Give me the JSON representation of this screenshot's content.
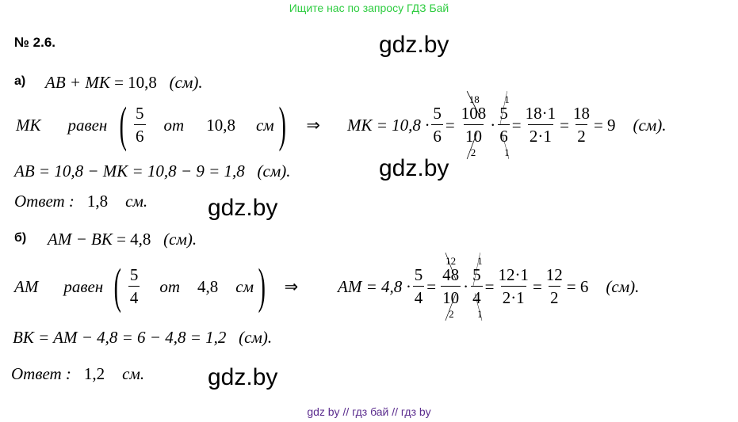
{
  "header_notice": "Ищите нас по запросу ГДЗ Бай",
  "problem_number": "№ 2.6.",
  "watermark": "gdz.by",
  "footer": "gdz by  //  гдз бай  //  гдз by",
  "part_a": {
    "label": "а)",
    "given": {
      "lhs": "AB + MK",
      "eq": " = 10,8",
      "unit": "   (см)."
    },
    "statement": {
      "var": "MK",
      "word": "равен",
      "num": "5",
      "den": "6",
      "of": "от",
      "value": "10,8",
      "unit": "см",
      "implies": "⇒"
    },
    "calc": {
      "lhs": "MK = 10,8 ·",
      "f1n": "5",
      "f1d": "6",
      "eq": "=",
      "f2n": "108",
      "f2d": "10",
      "f2n_red": "18",
      "f2d_red": "2",
      "dot": "·",
      "f3n": "5",
      "f3d": "6",
      "f3n_red": "1",
      "f3d_red": "1",
      "f4n": "18·1",
      "f4d": "2·1",
      "f5n": "18",
      "f5d": "2",
      "result": "= 9",
      "unit": "(см)."
    },
    "ab": "AB = 10,8 − MK = 10,8 − 9 = 1,8   (см).",
    "answer": {
      "word": "Ответ :",
      "value": "1,8",
      "unit": "см."
    }
  },
  "part_b": {
    "label": "б)",
    "given": {
      "lhs": "AM − BK",
      "eq": " = 4,8",
      "unit": "   (см)."
    },
    "statement": {
      "var": "AM",
      "word": "равен",
      "num": "5",
      "den": "4",
      "of": "от",
      "value": "4,8",
      "unit": "см",
      "implies": "⇒"
    },
    "calc": {
      "lhs": "AM = 4,8 ·",
      "f1n": "5",
      "f1d": "4",
      "eq": "=",
      "f2n": "48",
      "f2d": "10",
      "f2n_red": "12",
      "f2d_red": "2",
      "dot": "·",
      "f3n": "5",
      "f3d": "4",
      "f3n_red": "1",
      "f3d_red": "1",
      "f4n": "12·1",
      "f4d": "2·1",
      "f5n": "12",
      "f5d": "2",
      "result": "= 6",
      "unit": "(см)."
    },
    "bk": "BK = AM − 4,8 = 6 − 4,8 = 1,2   (см).",
    "answer": {
      "word": "Ответ :",
      "value": "1,2",
      "unit": "см."
    }
  }
}
